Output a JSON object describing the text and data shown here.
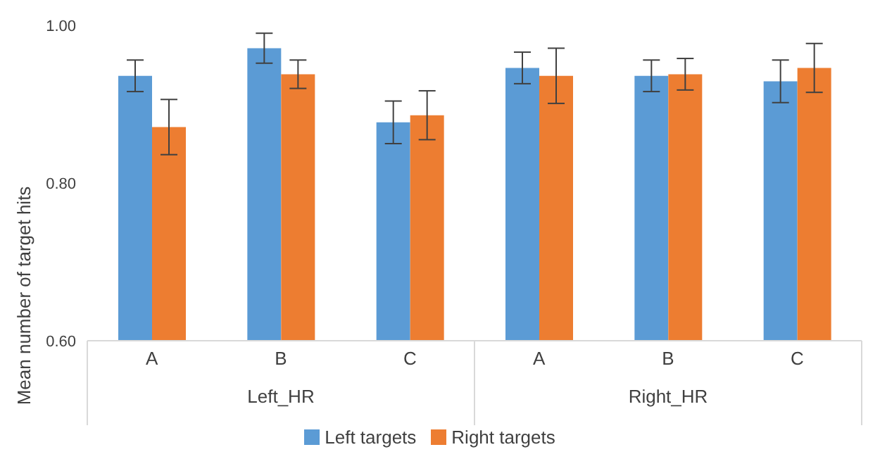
{
  "chart_data": {
    "type": "bar",
    "ylabel": "Mean number of target hits",
    "categories": [
      "A",
      "B",
      "C",
      "A",
      "B",
      "C"
    ],
    "annotations": [
      "Left_HR",
      "Right_HR"
    ],
    "series": [
      {
        "name": "Left targets",
        "color": "#5b9bd5",
        "values": [
          0.936,
          0.971,
          0.877,
          0.946,
          0.936,
          0.929
        ],
        "errors": [
          0.02,
          0.019,
          0.027,
          0.02,
          0.02,
          0.027
        ]
      },
      {
        "name": "Right targets",
        "color": "#ed7d31",
        "values": [
          0.871,
          0.938,
          0.886,
          0.936,
          0.938,
          0.946
        ],
        "errors": [
          0.035,
          0.018,
          0.031,
          0.035,
          0.02,
          0.031
        ]
      }
    ],
    "ylim": [
      0.6,
      1.0
    ],
    "yticks": [
      {
        "value": 0.6,
        "label": "0.60"
      },
      {
        "value": 0.8,
        "label": "0.80"
      },
      {
        "value": 1.0,
        "label": "1.00"
      }
    ],
    "grid": false,
    "legend": "bottom"
  }
}
